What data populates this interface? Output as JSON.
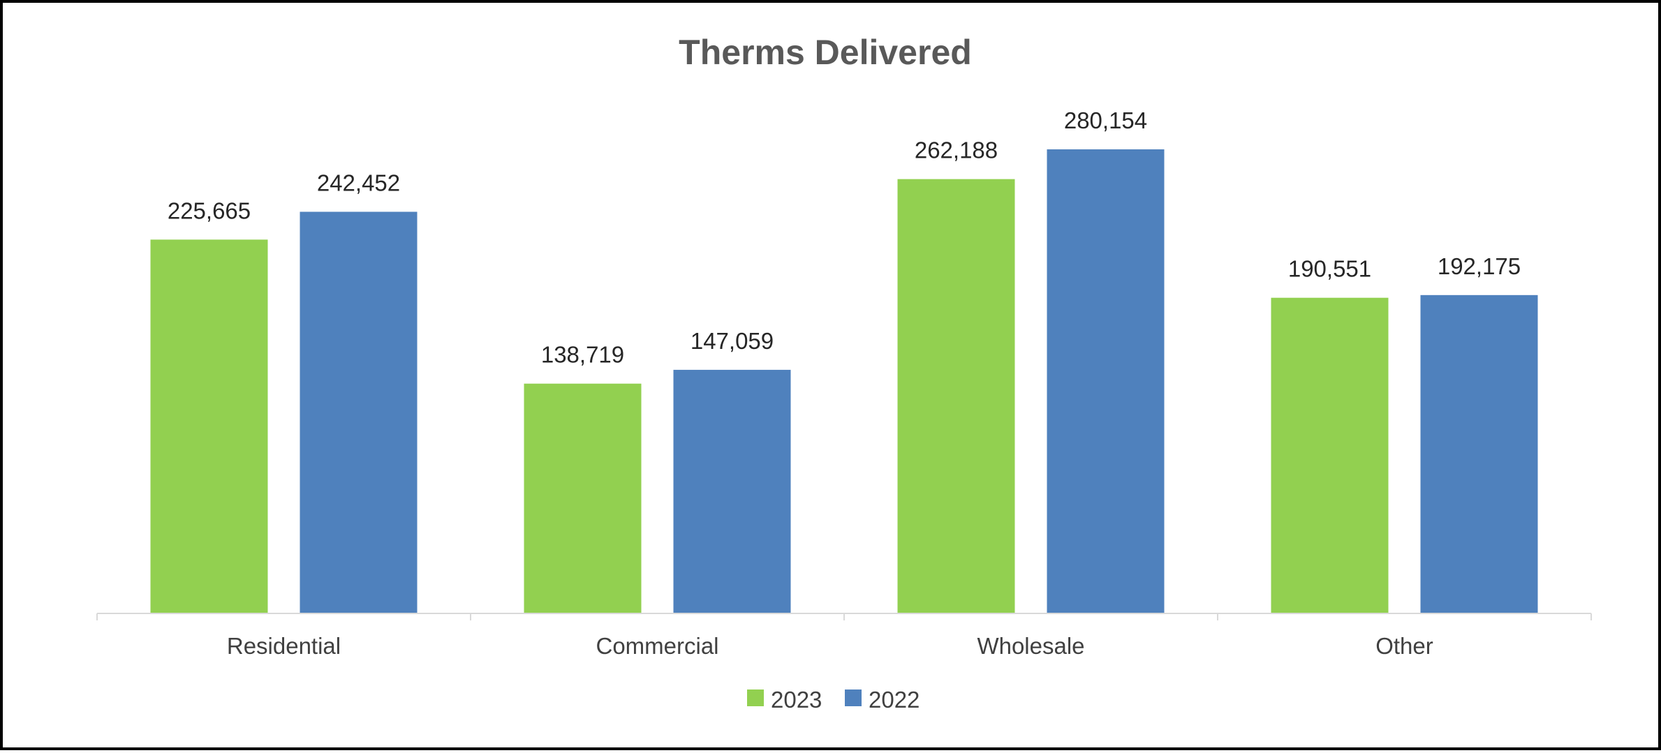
{
  "chart_data": {
    "type": "bar",
    "title": "Therms Delivered",
    "categories": [
      "Residential",
      "Commercial",
      "Wholesale",
      "Other"
    ],
    "series": [
      {
        "name": "2023",
        "color": "#92D050",
        "values": [
          225665,
          138719,
          262188,
          190551
        ],
        "labels": [
          "225,665",
          "138,719",
          "262,188",
          "190,551"
        ]
      },
      {
        "name": "2022",
        "color": "#4F81BD",
        "values": [
          242452,
          147059,
          280154,
          192175
        ],
        "labels": [
          "242,452",
          "147,059",
          "280,154",
          "192,175"
        ]
      }
    ],
    "ylim": [
      0,
      300000
    ],
    "grid": false,
    "legend": "bottom-center"
  }
}
